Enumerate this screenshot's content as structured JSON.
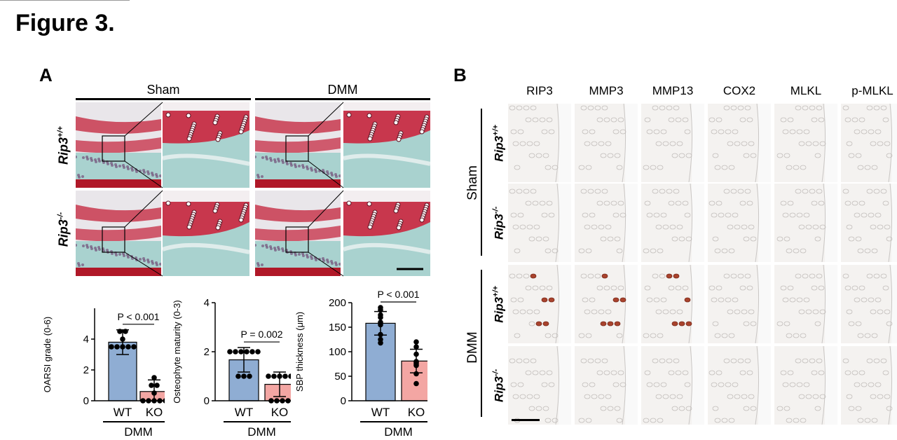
{
  "figure_title": "Figure 3.",
  "panel_a": {
    "letter": "A",
    "group_labels": [
      "Sham",
      "DMM"
    ],
    "row_labels": [
      {
        "base": "Rip3",
        "sup": "+/+"
      },
      {
        "base": "Rip3",
        "sup": "-/-"
      }
    ]
  },
  "panel_b": {
    "letter": "B",
    "columns": [
      "RIP3",
      "MMP3",
      "MMP13",
      "COX2",
      "MLKL",
      "p-MLKL"
    ],
    "group_labels": [
      "Sham",
      "DMM"
    ],
    "row_labels": [
      {
        "base": "Rip3",
        "sup": "+/+"
      },
      {
        "base": "Rip3",
        "sup": "-/-"
      },
      {
        "base": "Rip3",
        "sup": "+/+"
      },
      {
        "base": "Rip3",
        "sup": "-/-"
      }
    ]
  },
  "colors": {
    "wt_bar": "#8fadd3",
    "ko_bar": "#f3a6a3",
    "safranin": "#c8374d",
    "fast_green": "#a9d2cf"
  },
  "chart_data": [
    {
      "type": "bar",
      "categories": [
        "WT",
        "KO"
      ],
      "group_label": "DMM",
      "ylabel": "OARSI grade (0-6)",
      "ylim": [
        0,
        6
      ],
      "yticks": [
        0,
        2,
        4
      ],
      "values": [
        3.8,
        0.6
      ],
      "errors": [
        0.8,
        0.75
      ],
      "points": [
        [
          4.5,
          4.5,
          4.0,
          3.5,
          3.5,
          3.5,
          3.5,
          3.5
        ],
        [
          1.5,
          1.0,
          1.0,
          0.5,
          0,
          0,
          0,
          0,
          0
        ]
      ],
      "p_label": "P < 0.001"
    },
    {
      "type": "bar",
      "categories": [
        "WT",
        "KO"
      ],
      "group_label": "DMM",
      "ylabel": "Osteophyte maturity (0-3)",
      "ylim": [
        0,
        4
      ],
      "yticks": [
        0,
        2,
        4
      ],
      "values": [
        1.67,
        0.67
      ],
      "errors": [
        0.5,
        0.5
      ],
      "points": [
        [
          2,
          2,
          2,
          2,
          2,
          2,
          1,
          1,
          1
        ],
        [
          1,
          1,
          1,
          1,
          1,
          0,
          0,
          0,
          0
        ]
      ],
      "p_label": "P = 0.002"
    },
    {
      "type": "bar",
      "categories": [
        "WT",
        "KO"
      ],
      "group_label": "DMM",
      "ylabel": "SBP thickness (μm)",
      "ylim": [
        0,
        200
      ],
      "yticks": [
        0,
        50,
        100,
        150,
        200
      ],
      "values": [
        158,
        81
      ],
      "errors": [
        24,
        24
      ],
      "points": [
        [
          190,
          185,
          175,
          170,
          160,
          155,
          135,
          125,
          118
        ],
        [
          120,
          110,
          95,
          80,
          78,
          75,
          72,
          55,
          35
        ]
      ],
      "p_label": "P < 0.001"
    }
  ]
}
